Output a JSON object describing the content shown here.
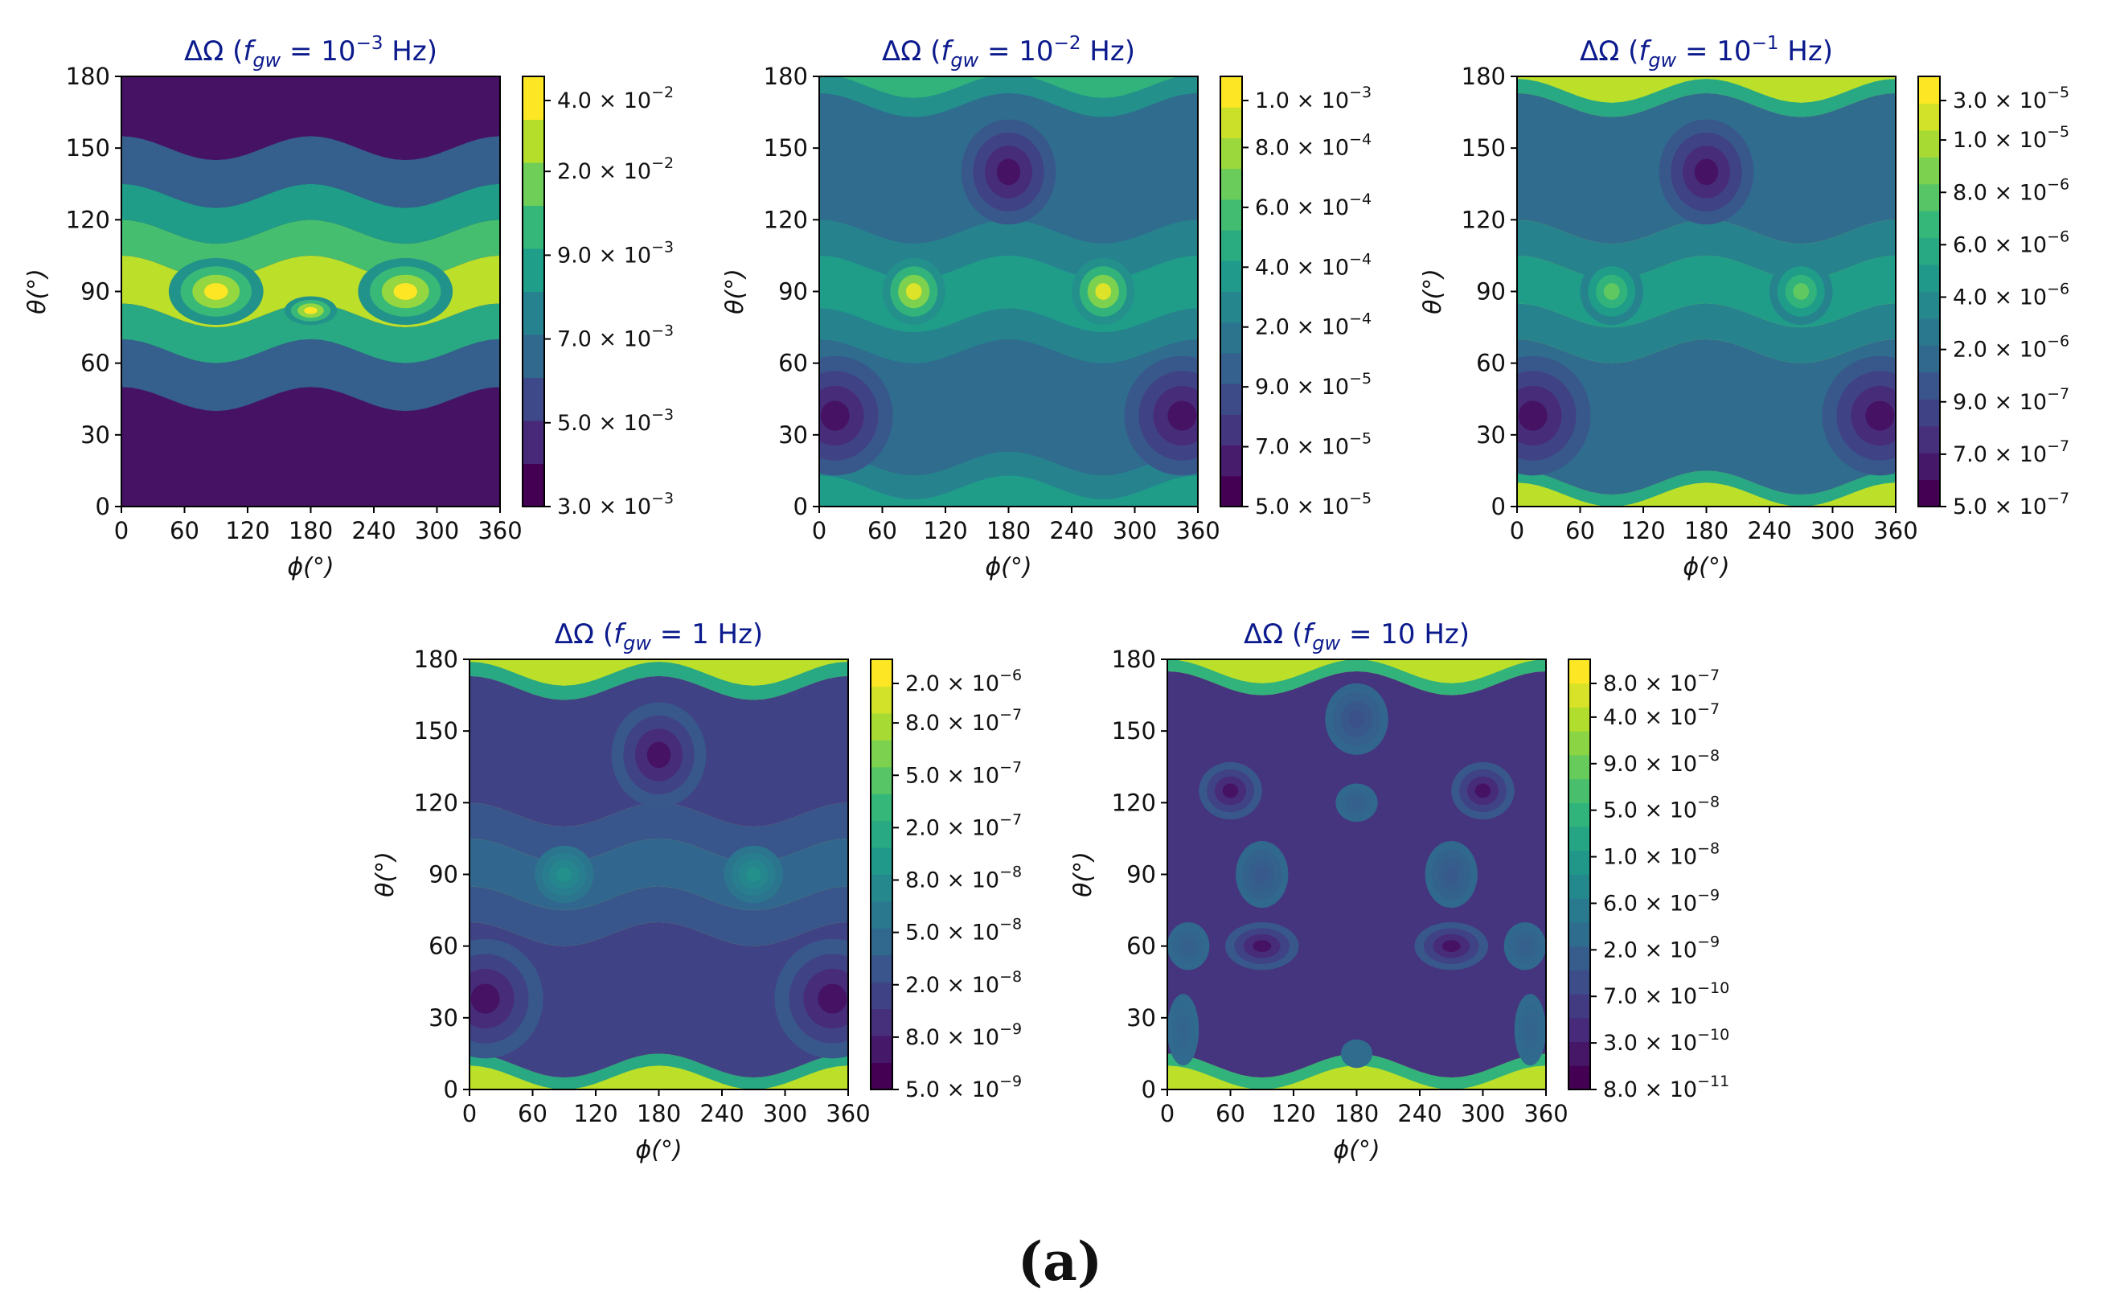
{
  "figure_label": "(a)",
  "chart_data": [
    {
      "type": "heatmap",
      "title_prefix": "ΔΩ (",
      "title_var": "f",
      "title_sub": "gw",
      "title_mid": " = 10",
      "title_exp": "−3",
      "title_unit": " Hz)",
      "xlabel": "ϕ(°)",
      "ylabel": "θ(°)",
      "x_ticks": [
        "0",
        "60",
        "120",
        "180",
        "240",
        "300",
        "360"
      ],
      "y_ticks": [
        "0",
        "30",
        "60",
        "90",
        "120",
        "150",
        "180"
      ],
      "xlim": [
        0,
        360
      ],
      "ylim": [
        0,
        180
      ],
      "colorbar_ticks": [
        {
          "mant": "3.0",
          "exp": "−3"
        },
        {
          "mant": "5.0",
          "exp": "−3"
        },
        {
          "mant": "7.0",
          "exp": "−3"
        },
        {
          "mant": "9.0",
          "exp": "−3"
        },
        {
          "mant": "2.0",
          "exp": "−2"
        },
        {
          "mant": "4.0",
          "exp": "−2"
        }
      ],
      "bands": [
        {
          "theta": [
            0,
            45
          ],
          "level": 0.05
        },
        {
          "theta": [
            45,
            65
          ],
          "level": 0.3
        },
        {
          "theta": [
            65,
            80
          ],
          "level": 0.6
        },
        {
          "theta": [
            80,
            100
          ],
          "level": 0.9
        },
        {
          "theta": [
            100,
            115
          ],
          "level": 0.7
        },
        {
          "theta": [
            115,
            130
          ],
          "level": 0.55
        },
        {
          "theta": [
            130,
            150
          ],
          "level": 0.3
        },
        {
          "theta": [
            150,
            180
          ],
          "level": 0.05
        }
      ],
      "blobs": [
        {
          "phi": 90,
          "theta": 90,
          "rphi": 45,
          "rtheta": 14,
          "level": 1.0
        },
        {
          "phi": 270,
          "theta": 90,
          "rphi": 45,
          "rtheta": 14,
          "level": 1.0
        },
        {
          "phi": 180,
          "theta": 82,
          "rphi": 25,
          "rtheta": 6,
          "level": 1.0
        }
      ]
    },
    {
      "type": "heatmap",
      "title_prefix": "ΔΩ (",
      "title_var": "f",
      "title_sub": "gw",
      "title_mid": " = 10",
      "title_exp": "−2",
      "title_unit": " Hz)",
      "xlabel": "ϕ(°)",
      "ylabel": "θ(°)",
      "x_ticks": [
        "0",
        "60",
        "120",
        "180",
        "240",
        "300",
        "360"
      ],
      "y_ticks": [
        "0",
        "30",
        "60",
        "90",
        "120",
        "150",
        "180"
      ],
      "xlim": [
        0,
        360
      ],
      "ylim": [
        0,
        180
      ],
      "colorbar_ticks": [
        {
          "mant": "5.0",
          "exp": "−5"
        },
        {
          "mant": "7.0",
          "exp": "−5"
        },
        {
          "mant": "9.0",
          "exp": "−5"
        },
        {
          "mant": "2.0",
          "exp": "−4"
        },
        {
          "mant": "4.0",
          "exp": "−4"
        },
        {
          "mant": "6.0",
          "exp": "−4"
        },
        {
          "mant": "8.0",
          "exp": "−4"
        },
        {
          "mant": "1.0",
          "exp": "−3"
        }
      ],
      "bands": [
        {
          "theta": [
            0,
            8
          ],
          "level": 0.55
        },
        {
          "theta": [
            8,
            18
          ],
          "level": 0.45
        },
        {
          "theta": [
            18,
            65
          ],
          "level": 0.35
        },
        {
          "theta": [
            65,
            78
          ],
          "level": 0.45
        },
        {
          "theta": [
            78,
            100
          ],
          "level": 0.55
        },
        {
          "theta": [
            100,
            115
          ],
          "level": 0.45
        },
        {
          "theta": [
            115,
            168
          ],
          "level": 0.35
        },
        {
          "theta": [
            168,
            176
          ],
          "level": 0.5
        },
        {
          "theta": [
            176,
            180
          ],
          "level": 0.65
        }
      ],
      "blobs": [
        {
          "phi": 90,
          "theta": 90,
          "rphi": 30,
          "rtheta": 14,
          "level": 0.95
        },
        {
          "phi": 270,
          "theta": 90,
          "rphi": 30,
          "rtheta": 14,
          "level": 0.95
        },
        {
          "phi": 180,
          "theta": 140,
          "rphi": 45,
          "rtheta": 22,
          "level": 0.05
        },
        {
          "phi": 15,
          "theta": 38,
          "rphi": 55,
          "rtheta": 25,
          "level": 0.05
        },
        {
          "phi": 345,
          "theta": 38,
          "rphi": 55,
          "rtheta": 25,
          "level": 0.05
        }
      ]
    },
    {
      "type": "heatmap",
      "title_prefix": "ΔΩ (",
      "title_var": "f",
      "title_sub": "gw",
      "title_mid": " = 10",
      "title_exp": "−1",
      "title_unit": " Hz)",
      "xlabel": "ϕ(°)",
      "ylabel": "θ(°)",
      "x_ticks": [
        "0",
        "60",
        "120",
        "180",
        "240",
        "300",
        "360"
      ],
      "y_ticks": [
        "0",
        "30",
        "60",
        "90",
        "120",
        "150",
        "180"
      ],
      "xlim": [
        0,
        360
      ],
      "ylim": [
        0,
        180
      ],
      "colorbar_ticks": [
        {
          "mant": "5.0",
          "exp": "−7"
        },
        {
          "mant": "7.0",
          "exp": "−7"
        },
        {
          "mant": "9.0",
          "exp": "−7"
        },
        {
          "mant": "2.0",
          "exp": "−6"
        },
        {
          "mant": "4.0",
          "exp": "−6"
        },
        {
          "mant": "6.0",
          "exp": "−6"
        },
        {
          "mant": "8.0",
          "exp": "−6"
        },
        {
          "mant": "1.0",
          "exp": "−5"
        },
        {
          "mant": "3.0",
          "exp": "−5"
        }
      ],
      "bands": [
        {
          "theta": [
            0,
            5
          ],
          "level": 0.9
        },
        {
          "theta": [
            5,
            10
          ],
          "level": 0.6
        },
        {
          "theta": [
            10,
            65
          ],
          "level": 0.35
        },
        {
          "theta": [
            65,
            80
          ],
          "level": 0.45
        },
        {
          "theta": [
            80,
            100
          ],
          "level": 0.55
        },
        {
          "theta": [
            100,
            115
          ],
          "level": 0.45
        },
        {
          "theta": [
            115,
            168
          ],
          "level": 0.35
        },
        {
          "theta": [
            168,
            174
          ],
          "level": 0.6
        },
        {
          "theta": [
            174,
            180
          ],
          "level": 0.9
        }
      ],
      "blobs": [
        {
          "phi": 90,
          "theta": 90,
          "rphi": 30,
          "rtheta": 14,
          "level": 0.75
        },
        {
          "phi": 270,
          "theta": 90,
          "rphi": 30,
          "rtheta": 14,
          "level": 0.75
        },
        {
          "phi": 180,
          "theta": 140,
          "rphi": 45,
          "rtheta": 22,
          "level": 0.05
        },
        {
          "phi": 15,
          "theta": 38,
          "rphi": 55,
          "rtheta": 25,
          "level": 0.05
        },
        {
          "phi": 345,
          "theta": 38,
          "rphi": 55,
          "rtheta": 25,
          "level": 0.05
        }
      ]
    },
    {
      "type": "heatmap",
      "title_prefix": "ΔΩ (",
      "title_var": "f",
      "title_sub": "gw",
      "title_mid": " = 1 Hz)",
      "title_exp": "",
      "title_unit": "",
      "xlabel": "ϕ(°)",
      "ylabel": "θ(°)",
      "x_ticks": [
        "0",
        "60",
        "120",
        "180",
        "240",
        "300",
        "360"
      ],
      "y_ticks": [
        "0",
        "30",
        "60",
        "90",
        "120",
        "150",
        "180"
      ],
      "xlim": [
        0,
        360
      ],
      "ylim": [
        0,
        180
      ],
      "colorbar_ticks": [
        {
          "mant": "5.0",
          "exp": "−9"
        },
        {
          "mant": "8.0",
          "exp": "−9"
        },
        {
          "mant": "2.0",
          "exp": "−8"
        },
        {
          "mant": "5.0",
          "exp": "−8"
        },
        {
          "mant": "8.0",
          "exp": "−8"
        },
        {
          "mant": "2.0",
          "exp": "−7"
        },
        {
          "mant": "5.0",
          "exp": "−7"
        },
        {
          "mant": "8.0",
          "exp": "−7"
        },
        {
          "mant": "2.0",
          "exp": "−6"
        }
      ],
      "bands": [
        {
          "theta": [
            0,
            5
          ],
          "level": 0.9
        },
        {
          "theta": [
            5,
            10
          ],
          "level": 0.6
        },
        {
          "theta": [
            10,
            65
          ],
          "level": 0.2
        },
        {
          "theta": [
            65,
            80
          ],
          "level": 0.27
        },
        {
          "theta": [
            80,
            100
          ],
          "level": 0.33
        },
        {
          "theta": [
            100,
            115
          ],
          "level": 0.27
        },
        {
          "theta": [
            115,
            168
          ],
          "level": 0.2
        },
        {
          "theta": [
            168,
            174
          ],
          "level": 0.6
        },
        {
          "theta": [
            174,
            180
          ],
          "level": 0.9
        }
      ],
      "blobs": [
        {
          "phi": 90,
          "theta": 90,
          "rphi": 28,
          "rtheta": 12,
          "level": 0.5
        },
        {
          "phi": 270,
          "theta": 90,
          "rphi": 28,
          "rtheta": 12,
          "level": 0.5
        },
        {
          "phi": 180,
          "theta": 140,
          "rphi": 45,
          "rtheta": 22,
          "level": 0.05
        },
        {
          "phi": 15,
          "theta": 38,
          "rphi": 55,
          "rtheta": 25,
          "level": 0.05
        },
        {
          "phi": 345,
          "theta": 38,
          "rphi": 55,
          "rtheta": 25,
          "level": 0.05
        }
      ]
    },
    {
      "type": "heatmap",
      "title_prefix": "ΔΩ (",
      "title_var": "f",
      "title_sub": "gw",
      "title_mid": " = 10 Hz)",
      "title_exp": "",
      "title_unit": "",
      "xlabel": "ϕ(°)",
      "ylabel": "θ(°)",
      "x_ticks": [
        "0",
        "60",
        "120",
        "180",
        "240",
        "300",
        "360"
      ],
      "y_ticks": [
        "0",
        "30",
        "60",
        "90",
        "120",
        "150",
        "180"
      ],
      "xlim": [
        0,
        360
      ],
      "ylim": [
        0,
        180
      ],
      "colorbar_ticks": [
        {
          "mant": "8.0",
          "exp": "−11"
        },
        {
          "mant": "3.0",
          "exp": "−10"
        },
        {
          "mant": "7.0",
          "exp": "−10"
        },
        {
          "mant": "2.0",
          "exp": "−9"
        },
        {
          "mant": "6.0",
          "exp": "−9"
        },
        {
          "mant": "1.0",
          "exp": "−8"
        },
        {
          "mant": "5.0",
          "exp": "−8"
        },
        {
          "mant": "9.0",
          "exp": "−8"
        },
        {
          "mant": "4.0",
          "exp": "−7"
        },
        {
          "mant": "8.0",
          "exp": "−7"
        }
      ],
      "bands": [
        {
          "theta": [
            0,
            5
          ],
          "level": 0.9
        },
        {
          "theta": [
            5,
            10
          ],
          "level": 0.65
        },
        {
          "theta": [
            10,
            170
          ],
          "level": 0.15
        },
        {
          "theta": [
            170,
            175
          ],
          "level": 0.65
        },
        {
          "theta": [
            175,
            180
          ],
          "level": 0.9
        }
      ],
      "blobs": [
        {
          "phi": 90,
          "theta": 60,
          "rphi": 35,
          "rtheta": 10,
          "level": 0.05
        },
        {
          "phi": 270,
          "theta": 60,
          "rphi": 35,
          "rtheta": 10,
          "level": 0.05
        },
        {
          "phi": 60,
          "theta": 125,
          "rphi": 30,
          "rtheta": 12,
          "level": 0.05
        },
        {
          "phi": 300,
          "theta": 125,
          "rphi": 30,
          "rtheta": 12,
          "level": 0.05
        },
        {
          "phi": 180,
          "theta": 120,
          "rphi": 20,
          "rtheta": 8,
          "level": 0.3
        },
        {
          "phi": 90,
          "theta": 90,
          "rphi": 25,
          "rtheta": 14,
          "level": 0.28
        },
        {
          "phi": 270,
          "theta": 90,
          "rphi": 25,
          "rtheta": 14,
          "level": 0.28
        },
        {
          "phi": 20,
          "theta": 60,
          "rphi": 20,
          "rtheta": 10,
          "level": 0.3
        },
        {
          "phi": 340,
          "theta": 60,
          "rphi": 20,
          "rtheta": 10,
          "level": 0.3
        },
        {
          "phi": 15,
          "theta": 25,
          "rphi": 15,
          "rtheta": 15,
          "level": 0.32
        },
        {
          "phi": 345,
          "theta": 25,
          "rphi": 15,
          "rtheta": 15,
          "level": 0.32
        },
        {
          "phi": 180,
          "theta": 15,
          "rphi": 15,
          "rtheta": 6,
          "level": 0.35
        },
        {
          "phi": 180,
          "theta": 155,
          "rphi": 30,
          "rtheta": 15,
          "level": 0.25
        }
      ]
    }
  ]
}
